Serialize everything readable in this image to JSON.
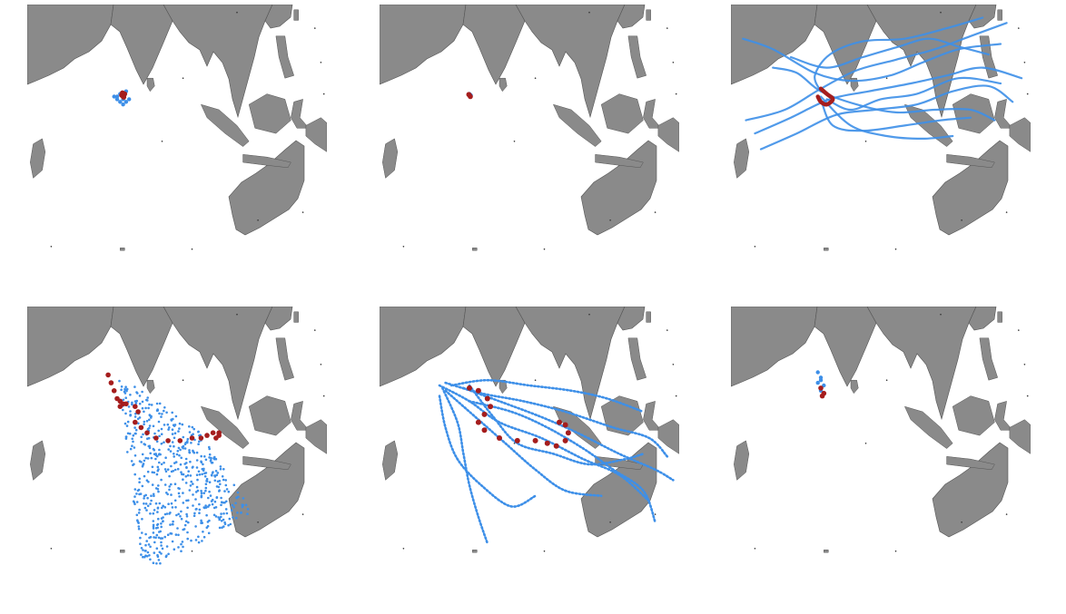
{
  "colors": {
    "land": "#8a8a8a",
    "coast": "#555555",
    "ensemble": "#3d8fe8",
    "observed": "#a51d1d",
    "background": "#ffffff"
  },
  "chart_data": [
    {
      "type": "scatter",
      "map": "indian-ocean-maritime-continent",
      "pattern": "cluster",
      "ensemble": [
        [
          0.31,
          0.34
        ],
        [
          0.32,
          0.36
        ],
        [
          0.33,
          0.33
        ],
        [
          0.3,
          0.35
        ],
        [
          0.32,
          0.35
        ],
        [
          0.34,
          0.36
        ],
        [
          0.31,
          0.37
        ],
        [
          0.33,
          0.37
        ],
        [
          0.32,
          0.38
        ],
        [
          0.3,
          0.36
        ],
        [
          0.29,
          0.35
        ]
      ],
      "observed": [
        [
          0.315,
          0.345
        ],
        [
          0.32,
          0.35
        ],
        [
          0.325,
          0.34
        ],
        [
          0.318,
          0.336
        ],
        [
          0.322,
          0.352
        ]
      ]
    },
    {
      "type": "scatter",
      "map": "indian-ocean-maritime-continent",
      "pattern": "cluster",
      "ensemble": [
        [
          0.3,
          0.34
        ],
        [
          0.305,
          0.345
        ]
      ],
      "observed": [
        [
          0.3,
          0.345
        ],
        [
          0.303,
          0.35
        ],
        [
          0.298,
          0.342
        ]
      ]
    },
    {
      "type": "line",
      "map": "indian-ocean-maritime-continent",
      "pattern": "tracks",
      "ensemble_tracks": [
        [
          [
            0.05,
            0.44
          ],
          [
            0.18,
            0.4
          ],
          [
            0.3,
            0.32
          ],
          [
            0.42,
            0.25
          ],
          [
            0.55,
            0.21
          ],
          [
            0.68,
            0.17
          ],
          [
            0.8,
            0.12
          ],
          [
            0.92,
            0.07
          ]
        ],
        [
          [
            0.04,
            0.13
          ],
          [
            0.14,
            0.17
          ],
          [
            0.28,
            0.26
          ],
          [
            0.4,
            0.29
          ],
          [
            0.53,
            0.27
          ],
          [
            0.64,
            0.22
          ],
          [
            0.76,
            0.17
          ],
          [
            0.9,
            0.15
          ]
        ],
        [
          [
            0.08,
            0.49
          ],
          [
            0.2,
            0.43
          ],
          [
            0.33,
            0.36
          ],
          [
            0.46,
            0.33
          ],
          [
            0.6,
            0.3
          ],
          [
            0.72,
            0.27
          ],
          [
            0.84,
            0.24
          ],
          [
            0.97,
            0.28
          ]
        ],
        [
          [
            0.1,
            0.55
          ],
          [
            0.22,
            0.49
          ],
          [
            0.35,
            0.42
          ],
          [
            0.48,
            0.4
          ],
          [
            0.62,
            0.38
          ],
          [
            0.74,
            0.33
          ],
          [
            0.86,
            0.31
          ],
          [
            0.94,
            0.37
          ]
        ],
        [
          [
            0.14,
            0.24
          ],
          [
            0.22,
            0.26
          ],
          [
            0.3,
            0.33
          ],
          [
            0.42,
            0.38
          ],
          [
            0.55,
            0.41
          ],
          [
            0.68,
            0.4
          ],
          [
            0.8,
            0.4
          ],
          [
            0.88,
            0.44
          ]
        ],
        [
          [
            0.3,
            0.35
          ],
          [
            0.4,
            0.46
          ],
          [
            0.52,
            0.5
          ],
          [
            0.64,
            0.51
          ],
          [
            0.74,
            0.5
          ]
        ],
        [
          [
            0.2,
            0.2
          ],
          [
            0.32,
            0.24
          ],
          [
            0.44,
            0.2
          ],
          [
            0.56,
            0.16
          ],
          [
            0.66,
            0.13
          ],
          [
            0.76,
            0.16
          ],
          [
            0.86,
            0.19
          ]
        ],
        [
          [
            0.3,
            0.33
          ],
          [
            0.28,
            0.27
          ],
          [
            0.33,
            0.19
          ],
          [
            0.44,
            0.14
          ],
          [
            0.58,
            0.13
          ],
          [
            0.72,
            0.09
          ],
          [
            0.84,
            0.05
          ]
        ],
        [
          [
            0.32,
            0.36
          ],
          [
            0.4,
            0.4
          ],
          [
            0.5,
            0.36
          ],
          [
            0.62,
            0.34
          ],
          [
            0.76,
            0.28
          ],
          [
            0.9,
            0.3
          ]
        ],
        [
          [
            0.3,
            0.36
          ],
          [
            0.34,
            0.46
          ],
          [
            0.44,
            0.48
          ],
          [
            0.58,
            0.46
          ],
          [
            0.7,
            0.44
          ],
          [
            0.8,
            0.43
          ]
        ]
      ],
      "observed": [
        [
          0.3,
          0.32
        ],
        [
          0.32,
          0.34
        ],
        [
          0.34,
          0.36
        ],
        [
          0.32,
          0.38
        ],
        [
          0.3,
          0.37
        ],
        [
          0.29,
          0.35
        ]
      ]
    },
    {
      "type": "scatter",
      "map": "indian-ocean-maritime-continent",
      "pattern": "scatter",
      "ensemble_region": [
        [
          0.3,
          0.25
        ],
        [
          0.58,
          0.48
        ],
        [
          0.75,
          0.78
        ],
        [
          0.45,
          0.98
        ],
        [
          0.38,
          0.97
        ],
        [
          0.3,
          0.25
        ]
      ],
      "ensemble_count": 600,
      "observed": [
        [
          0.27,
          0.26
        ],
        [
          0.28,
          0.29
        ],
        [
          0.29,
          0.32
        ],
        [
          0.3,
          0.35
        ],
        [
          0.31,
          0.36
        ],
        [
          0.32,
          0.37
        ],
        [
          0.33,
          0.37
        ],
        [
          0.31,
          0.38
        ],
        [
          0.36,
          0.38
        ],
        [
          0.37,
          0.4
        ],
        [
          0.36,
          0.44
        ],
        [
          0.38,
          0.46
        ],
        [
          0.4,
          0.48
        ],
        [
          0.43,
          0.5
        ],
        [
          0.47,
          0.51
        ],
        [
          0.51,
          0.51
        ],
        [
          0.55,
          0.5
        ],
        [
          0.58,
          0.5
        ],
        [
          0.6,
          0.49
        ],
        [
          0.62,
          0.48
        ],
        [
          0.64,
          0.48
        ],
        [
          0.64,
          0.49
        ],
        [
          0.63,
          0.5
        ]
      ]
    },
    {
      "type": "line",
      "map": "indian-ocean-maritime-continent",
      "pattern": "dotted-tracks",
      "ensemble_tracks": [
        [
          [
            0.22,
            0.29
          ],
          [
            0.34,
            0.33
          ],
          [
            0.48,
            0.36
          ],
          [
            0.62,
            0.4
          ],
          [
            0.78,
            0.46
          ],
          [
            0.9,
            0.5
          ],
          [
            0.96,
            0.57
          ]
        ],
        [
          [
            0.2,
            0.3
          ],
          [
            0.3,
            0.36
          ],
          [
            0.4,
            0.44
          ],
          [
            0.54,
            0.5
          ],
          [
            0.68,
            0.58
          ],
          [
            0.8,
            0.64
          ],
          [
            0.9,
            0.74
          ]
        ],
        [
          [
            0.21,
            0.31
          ],
          [
            0.26,
            0.44
          ],
          [
            0.28,
            0.56
          ],
          [
            0.3,
            0.68
          ],
          [
            0.33,
            0.8
          ],
          [
            0.36,
            0.9
          ]
        ],
        [
          [
            0.24,
            0.3
          ],
          [
            0.36,
            0.28
          ],
          [
            0.5,
            0.3
          ],
          [
            0.64,
            0.32
          ],
          [
            0.76,
            0.35
          ],
          [
            0.88,
            0.4
          ]
        ],
        [
          [
            0.22,
            0.32
          ],
          [
            0.32,
            0.42
          ],
          [
            0.42,
            0.52
          ],
          [
            0.52,
            0.62
          ],
          [
            0.62,
            0.7
          ],
          [
            0.74,
            0.72
          ]
        ],
        [
          [
            0.3,
            0.36
          ],
          [
            0.44,
            0.4
          ],
          [
            0.56,
            0.46
          ],
          [
            0.68,
            0.54
          ],
          [
            0.78,
            0.62
          ],
          [
            0.88,
            0.7
          ],
          [
            0.92,
            0.82
          ]
        ],
        [
          [
            0.2,
            0.34
          ],
          [
            0.22,
            0.46
          ],
          [
            0.26,
            0.58
          ],
          [
            0.34,
            0.68
          ],
          [
            0.44,
            0.76
          ],
          [
            0.52,
            0.72
          ]
        ],
        [
          [
            0.28,
            0.31
          ],
          [
            0.4,
            0.36
          ],
          [
            0.54,
            0.42
          ],
          [
            0.66,
            0.48
          ],
          [
            0.8,
            0.56
          ],
          [
            0.92,
            0.62
          ],
          [
            0.98,
            0.66
          ]
        ],
        [
          [
            0.3,
            0.3
          ],
          [
            0.38,
            0.42
          ],
          [
            0.46,
            0.52
          ],
          [
            0.58,
            0.56
          ],
          [
            0.7,
            0.6
          ],
          [
            0.82,
            0.58
          ],
          [
            0.88,
            0.56
          ]
        ]
      ],
      "observed": [
        [
          0.3,
          0.31
        ],
        [
          0.33,
          0.32
        ],
        [
          0.36,
          0.35
        ],
        [
          0.37,
          0.38
        ],
        [
          0.35,
          0.41
        ],
        [
          0.33,
          0.44
        ],
        [
          0.35,
          0.47
        ],
        [
          0.4,
          0.5
        ],
        [
          0.46,
          0.51
        ],
        [
          0.52,
          0.51
        ],
        [
          0.56,
          0.52
        ],
        [
          0.59,
          0.53
        ],
        [
          0.62,
          0.51
        ],
        [
          0.63,
          0.48
        ],
        [
          0.62,
          0.45
        ],
        [
          0.6,
          0.44
        ]
      ]
    },
    {
      "type": "scatter",
      "map": "indian-ocean-maritime-continent",
      "pattern": "cluster",
      "ensemble": [
        [
          0.29,
          0.25
        ],
        [
          0.3,
          0.27
        ],
        [
          0.29,
          0.29
        ],
        [
          0.31,
          0.3
        ],
        [
          0.3,
          0.32
        ],
        [
          0.3,
          0.28
        ]
      ],
      "observed": [
        [
          0.3,
          0.31
        ],
        [
          0.31,
          0.33
        ],
        [
          0.305,
          0.34
        ]
      ]
    }
  ]
}
